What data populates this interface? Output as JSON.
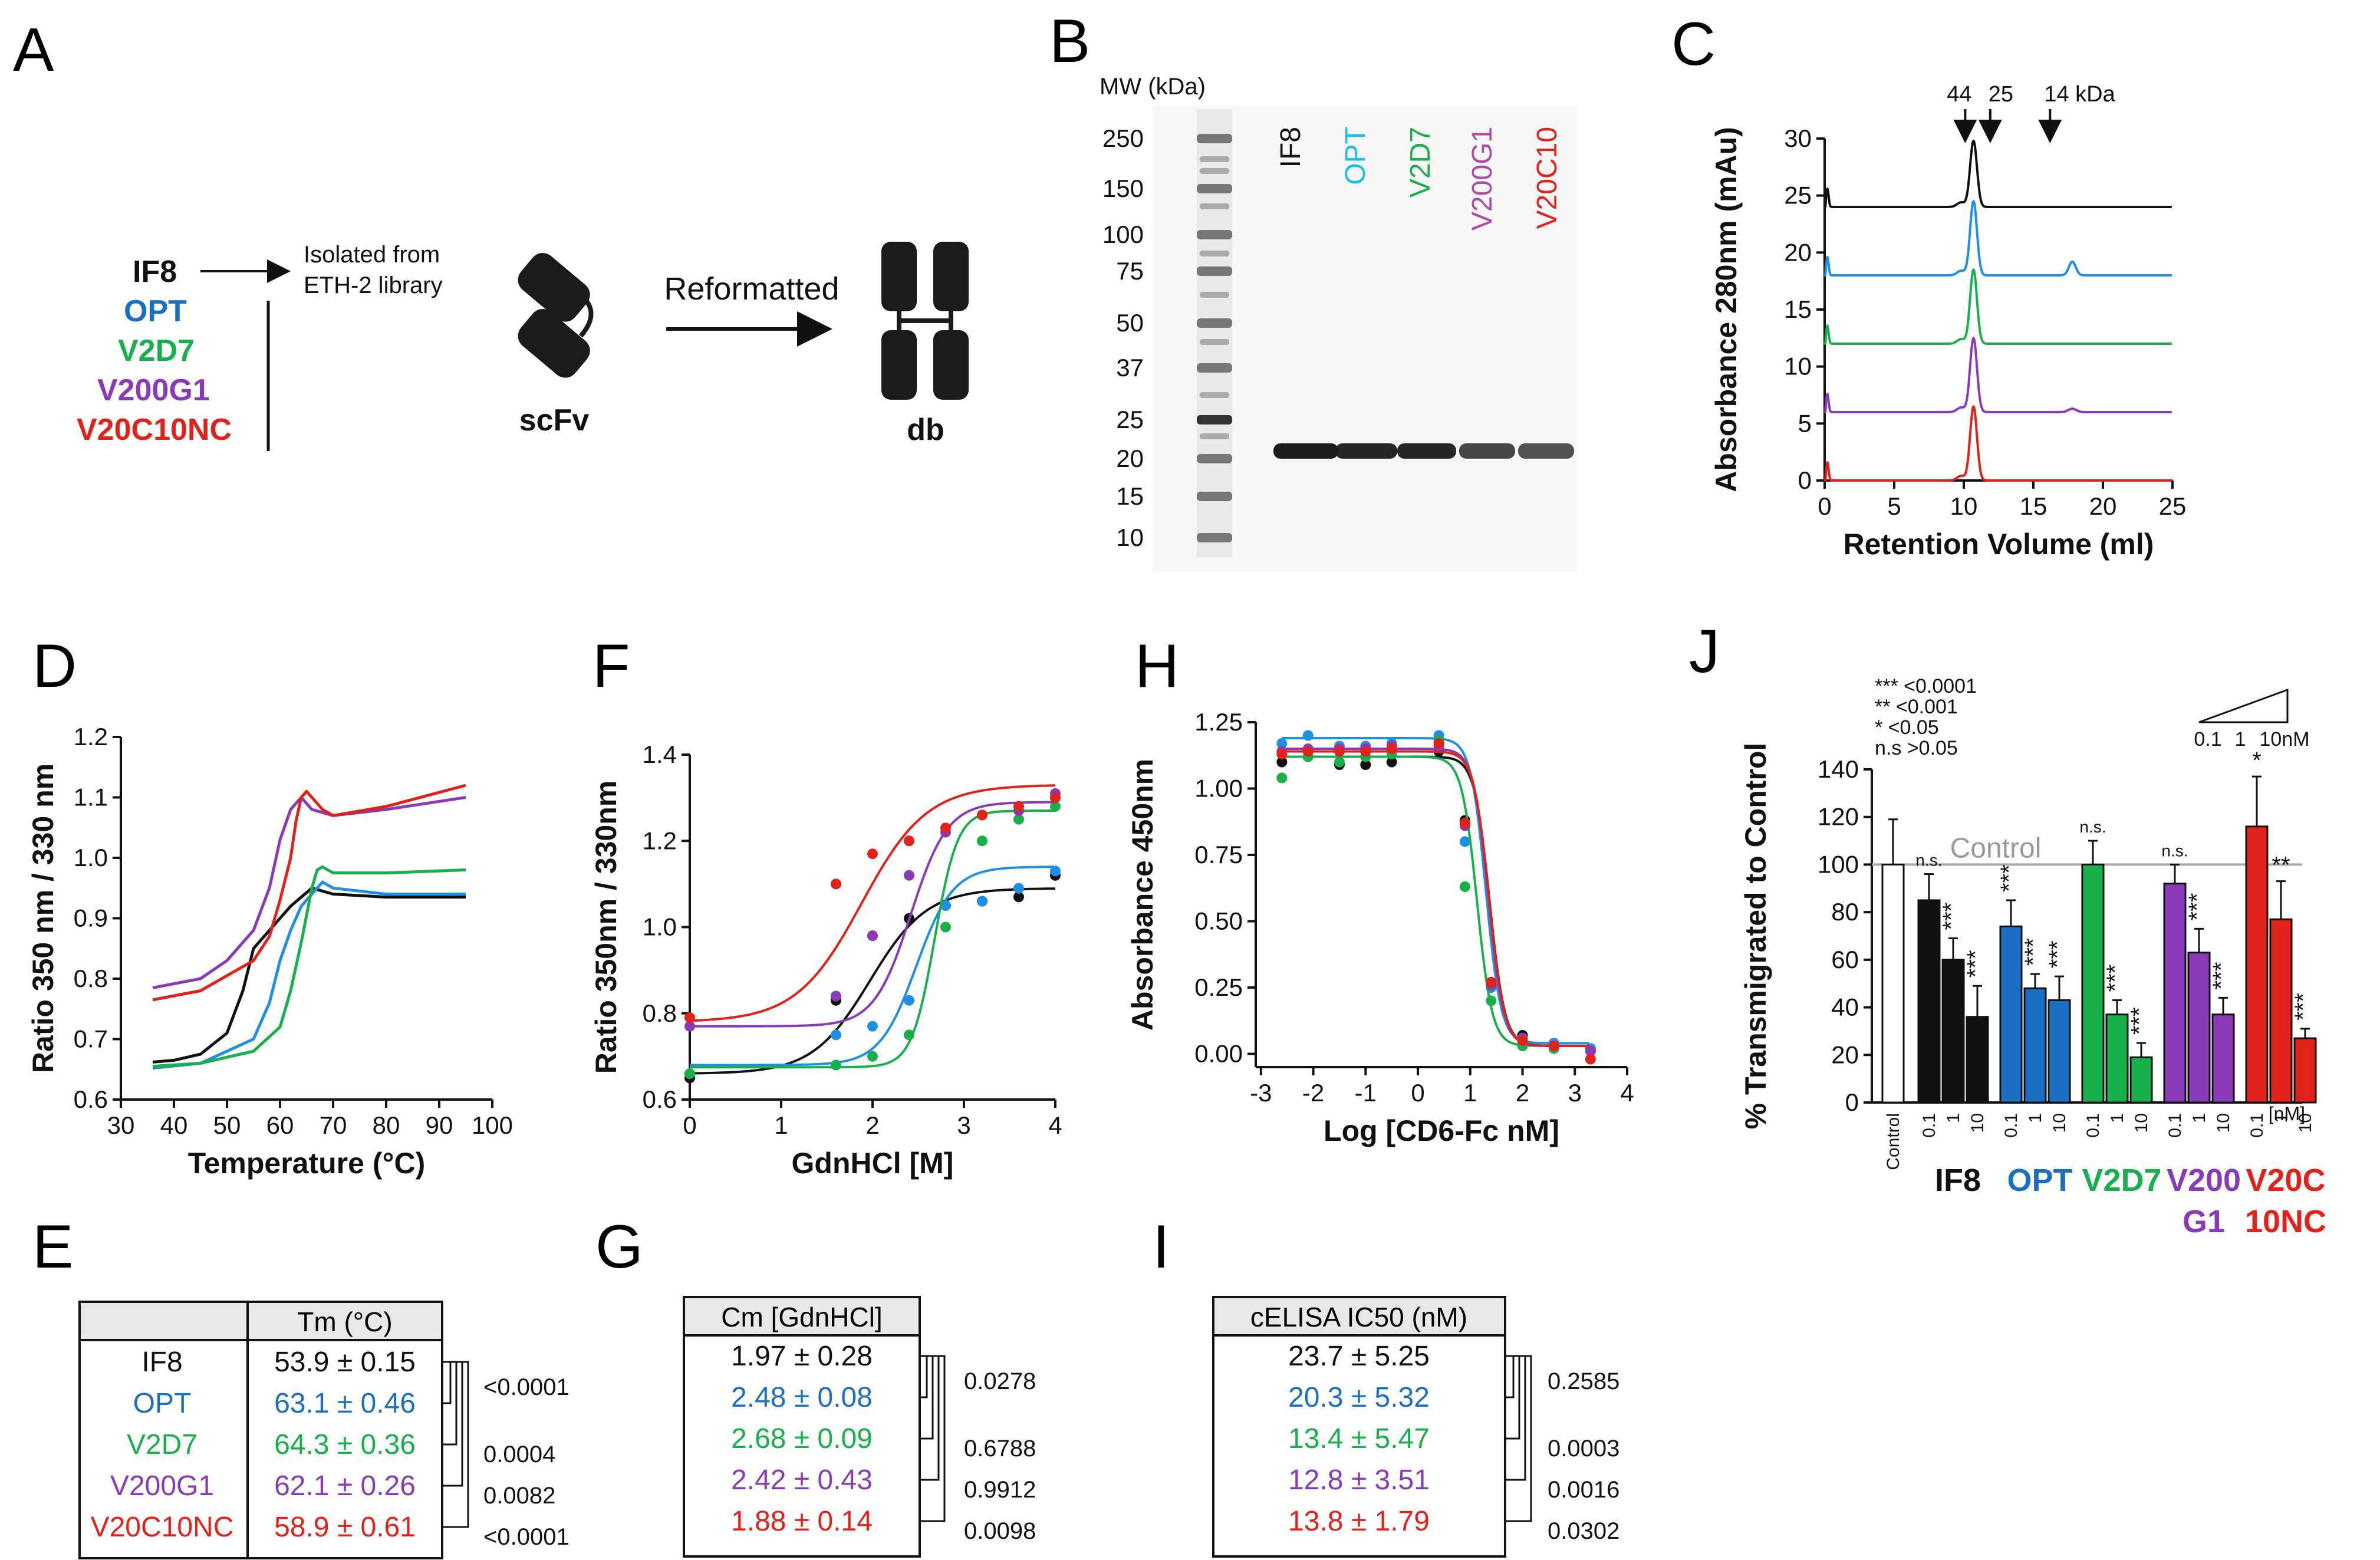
{
  "colors": {
    "IF8": "#111111",
    "OPT": "#1f8fe6",
    "OPT_dark": "#1a6fc2",
    "V2D7": "#18b04b",
    "V200G1": "#8a3ab8",
    "V20C10NC": "#e0221a",
    "gray": "#999999"
  },
  "panelA": {
    "letter": "A",
    "variants": [
      "IF8",
      "OPT",
      "V2D7",
      "V200G1",
      "V20C10NC"
    ],
    "isolated_line1": "Isolated from",
    "isolated_line2": "ETH-2 library",
    "scfv_label": "scFv",
    "reformatted_label": "Reformatted",
    "db_label": "db"
  },
  "panelB": {
    "letter": "B",
    "mw_title": "MW (kDa)",
    "mw_markers": [
      "250",
      "150",
      "100",
      "75",
      "50",
      "37",
      "25",
      "20",
      "15",
      "10"
    ],
    "lanes": [
      "IF8",
      "OPT",
      "V2D7",
      "V200G1",
      "V20C10"
    ]
  },
  "panelC": {
    "letter": "C",
    "markers": [
      "44",
      "25",
      "14 kDa"
    ],
    "xlabel": "Retention Volume (ml)",
    "ylabel": "Absorbance 280nm (mAu)",
    "xticks": [
      "0",
      "5",
      "10",
      "15",
      "20",
      "25"
    ],
    "yticks": [
      "0",
      "5",
      "10",
      "15",
      "20",
      "25",
      "30"
    ]
  },
  "panelD": {
    "letter": "D",
    "xlabel": "Temperature (°C)",
    "ylabel": "Ratio 350 nm / 330 nm",
    "xticks": [
      "30",
      "40",
      "50",
      "60",
      "70",
      "80",
      "90",
      "100"
    ],
    "yticks": [
      "0.6",
      "0.7",
      "0.8",
      "0.9",
      "1.0",
      "1.1",
      "1.2"
    ]
  },
  "panelE": {
    "letter": "E",
    "header": "Tm (°C)",
    "rows": [
      {
        "name": "IF8",
        "value": "53.9 ± 0.15"
      },
      {
        "name": "OPT",
        "value": "63.1 ± 0.46"
      },
      {
        "name": "V2D7",
        "value": "64.3 ± 0.36"
      },
      {
        "name": "V200G1",
        "value": "62.1 ± 0.26"
      },
      {
        "name": "V20C10NC",
        "value": "58.9 ± 0.61"
      }
    ],
    "pvalues": [
      "<0.0001",
      "0.0004",
      "0.0082",
      "<0.0001"
    ]
  },
  "panelF": {
    "letter": "F",
    "xlabel": "GdnHCl [M]",
    "ylabel": "Ratio 350nm / 330nm",
    "xticks": [
      "0",
      "1",
      "2",
      "3",
      "4"
    ],
    "yticks": [
      "0.6",
      "0.8",
      "1.0",
      "1.2",
      "1.4"
    ]
  },
  "panelG": {
    "letter": "G",
    "header": "Cm [GdnHCl]",
    "values": [
      "1.97 ± 0.28",
      "2.48 ± 0.08",
      "2.68 ± 0.09",
      "2.42 ± 0.43",
      "1.88 ± 0.14"
    ],
    "pvalues": [
      "0.0278",
      "0.6788",
      "0.9912",
      "0.0098"
    ]
  },
  "panelH": {
    "letter": "H",
    "xlabel": "Log [CD6-Fc nM]",
    "ylabel": "Absorbance 450nm",
    "xticks": [
      "-3",
      "-2",
      "-1",
      "0",
      "1",
      "2",
      "3",
      "4"
    ],
    "yticks": [
      "0.00",
      "0.25",
      "0.50",
      "0.75",
      "1.00",
      "1.25"
    ]
  },
  "panelI": {
    "letter": "I",
    "header": "cELISA IC50 (nM)",
    "values": [
      "23.7 ± 5.25",
      "20.3 ± 5.32",
      "13.4 ± 5.47",
      "12.8 ± 3.51",
      "13.8 ± 1.79"
    ],
    "pvalues": [
      "0.2585",
      "0.0003",
      "0.0016",
      "0.0302"
    ]
  },
  "panelJ": {
    "letter": "J",
    "ylabel": "% Transmigrated to Control",
    "control_label": "Control",
    "legend": [
      "*** <0.0001",
      "** <0.001",
      "* <0.05",
      "n.s >0.05"
    ],
    "conc_labels": [
      "0.1",
      "1",
      "10nM"
    ],
    "unit": "[nM]",
    "yticks": [
      "0",
      "20",
      "40",
      "60",
      "80",
      "100",
      "120",
      "140"
    ],
    "group_labels": [
      {
        "text": "IF8",
        "sub": ""
      },
      {
        "text": "OPT",
        "sub": ""
      },
      {
        "text": "V2D7",
        "sub": ""
      },
      {
        "text": "V200",
        "sub": "G1"
      },
      {
        "text": "V20C",
        "sub": "10NC"
      }
    ]
  },
  "chart_data": [
    {
      "type": "line",
      "title": "C",
      "xlabel": "Retention Volume (ml)",
      "ylabel": "Absorbance 280nm (mAu)",
      "xlim": [
        0,
        25
      ],
      "ylim": [
        0,
        30
      ],
      "series": [
        {
          "name": "IF8",
          "baseline": 24,
          "peak_x": 10.7,
          "peak": 29.8
        },
        {
          "name": "OPT",
          "baseline": 18,
          "peak_x": 10.7,
          "peak": 24.5
        },
        {
          "name": "V2D7",
          "baseline": 12,
          "peak_x": 10.7,
          "peak": 18.5
        },
        {
          "name": "V200G1",
          "baseline": 6,
          "peak_x": 10.7,
          "peak": 12.5
        },
        {
          "name": "V20C10NC",
          "baseline": 0,
          "peak_x": 10.7,
          "peak": 6.5
        }
      ]
    },
    {
      "type": "line",
      "title": "D",
      "xlabel": "Temperature (°C)",
      "ylabel": "Ratio 350 nm / 330 nm",
      "xlim": [
        30,
        100
      ],
      "ylim": [
        0.6,
        1.2
      ],
      "series": [
        {
          "name": "IF8",
          "x": [
            36,
            40,
            45,
            50,
            53,
            55,
            58,
            62,
            66,
            70,
            80,
            95
          ],
          "y": [
            0.662,
            0.665,
            0.675,
            0.71,
            0.78,
            0.85,
            0.88,
            0.92,
            0.95,
            0.94,
            0.935,
            0.935
          ]
        },
        {
          "name": "OPT",
          "x": [
            36,
            45,
            55,
            58,
            60,
            62,
            64,
            66,
            68,
            70,
            80,
            95
          ],
          "y": [
            0.652,
            0.66,
            0.7,
            0.76,
            0.83,
            0.88,
            0.92,
            0.94,
            0.96,
            0.95,
            0.94,
            0.94
          ]
        },
        {
          "name": "V2D7",
          "x": [
            36,
            45,
            55,
            60,
            62,
            64,
            66,
            67,
            68,
            70,
            80,
            95
          ],
          "y": [
            0.655,
            0.66,
            0.68,
            0.72,
            0.78,
            0.86,
            0.95,
            0.98,
            0.985,
            0.975,
            0.975,
            0.98
          ]
        },
        {
          "name": "V200G1",
          "x": [
            36,
            45,
            50,
            55,
            58,
            60,
            62,
            64,
            66,
            70,
            80,
            95
          ],
          "y": [
            0.785,
            0.8,
            0.83,
            0.88,
            0.95,
            1.03,
            1.08,
            1.1,
            1.08,
            1.07,
            1.08,
            1.1
          ]
        },
        {
          "name": "V20C10NC",
          "x": [
            36,
            45,
            55,
            58,
            60,
            62,
            63,
            64,
            65,
            66,
            68,
            70,
            80,
            95
          ],
          "y": [
            0.765,
            0.78,
            0.83,
            0.87,
            0.93,
            1.0,
            1.06,
            1.1,
            1.11,
            1.1,
            1.08,
            1.07,
            1.085,
            1.12
          ]
        }
      ]
    },
    {
      "type": "scatter",
      "title": "F",
      "xlabel": "GdnHCl [M]",
      "ylabel": "Ratio 350nm / 330nm",
      "xlim": [
        0,
        4
      ],
      "ylim": [
        0.6,
        1.4
      ],
      "series": [
        {
          "name": "IF8",
          "low": 0.66,
          "high": 1.09,
          "cm": 1.97,
          "slope": 1.6,
          "points_x": [
            0,
            1.6,
            2,
            2.4,
            2.8,
            3.2,
            3.6,
            4
          ],
          "points_y": [
            0.65,
            0.83,
            0.98,
            1.02,
            1.05,
            1.06,
            1.07,
            1.12
          ]
        },
        {
          "name": "OPT",
          "low": 0.68,
          "high": 1.14,
          "cm": 2.48,
          "slope": 2.5,
          "points_x": [
            0,
            1.6,
            2,
            2.4,
            2.8,
            3.2,
            3.6,
            4
          ],
          "points_y": [
            0.66,
            0.75,
            0.77,
            0.83,
            1.05,
            1.06,
            1.09,
            1.13
          ]
        },
        {
          "name": "V2D7",
          "low": 0.675,
          "high": 1.27,
          "cm": 2.68,
          "slope": 4,
          "points_x": [
            0,
            1.6,
            2,
            2.4,
            2.8,
            3.2,
            3.6,
            4
          ],
          "points_y": [
            0.66,
            0.68,
            0.7,
            0.75,
            1.0,
            1.2,
            1.25,
            1.28
          ]
        },
        {
          "name": "V200G1",
          "low": 0.77,
          "high": 1.29,
          "cm": 2.42,
          "slope": 2.5,
          "points_x": [
            0,
            1.6,
            2,
            2.4,
            2.8,
            3.2,
            3.6,
            4
          ],
          "points_y": [
            0.77,
            0.84,
            0.98,
            1.12,
            1.22,
            1.26,
            1.27,
            1.31
          ]
        },
        {
          "name": "V20C10NC",
          "low": 0.78,
          "high": 1.33,
          "cm": 1.88,
          "slope": 1.4,
          "points_x": [
            0,
            1.6,
            2,
            2.4,
            2.8,
            3.2,
            3.6,
            4
          ],
          "points_y": [
            0.79,
            1.1,
            1.17,
            1.2,
            1.23,
            1.26,
            1.28,
            1.3
          ]
        }
      ]
    },
    {
      "type": "scatter",
      "title": "H",
      "xlabel": "Log [CD6-Fc nM]",
      "ylabel": "Absorbance 450nm",
      "xlim": [
        -3,
        4
      ],
      "ylim": [
        0,
        1.25
      ],
      "series": [
        {
          "name": "IF8",
          "top": 1.12,
          "bottom": 0.03,
          "logIC50": 1.37,
          "points_x": [
            -2.6,
            -2.1,
            -1.5,
            -1,
            -0.5,
            0.4,
            0.9,
            1.4,
            2,
            2.6,
            3.3
          ],
          "points_y": [
            1.1,
            1.12,
            1.09,
            1.09,
            1.1,
            1.14,
            0.88,
            0.27,
            0.07,
            0.04,
            0.02
          ]
        },
        {
          "name": "OPT",
          "top": 1.19,
          "bottom": 0.04,
          "logIC50": 1.3,
          "points_x": [
            -2.6,
            -2.1,
            -1.5,
            -1,
            -0.5,
            0.4,
            0.9,
            1.4,
            2,
            2.6,
            3.3
          ],
          "points_y": [
            1.17,
            1.2,
            1.16,
            1.16,
            1.17,
            1.2,
            0.8,
            0.25,
            0.05,
            0.04,
            0.02
          ]
        },
        {
          "name": "V2D7",
          "top": 1.12,
          "bottom": 0.03,
          "logIC50": 1.13,
          "points_x": [
            -2.6,
            -2.1,
            -1.5,
            -1,
            -0.5,
            0.4,
            0.9,
            1.4,
            2,
            2.6,
            3.3
          ],
          "points_y": [
            1.04,
            1.12,
            1.1,
            1.12,
            1.13,
            1.18,
            0.63,
            0.2,
            0.03,
            0.02,
            0.01
          ]
        },
        {
          "name": "V200G1",
          "top": 1.15,
          "bottom": 0.03,
          "logIC50": 1.35,
          "points_x": [
            -2.6,
            -2.1,
            -1.5,
            -1,
            -0.5,
            0.4,
            0.9,
            1.4,
            2,
            2.6,
            3.3
          ],
          "points_y": [
            1.14,
            1.15,
            1.15,
            1.15,
            1.16,
            1.16,
            0.86,
            0.26,
            0.06,
            0.03,
            0.01
          ]
        },
        {
          "name": "V20C10NC",
          "top": 1.14,
          "bottom": 0.03,
          "logIC50": 1.36,
          "points_x": [
            -2.6,
            -2.1,
            -1.5,
            -1,
            -0.5,
            0.4,
            0.9,
            1.4,
            2,
            2.6,
            3.3
          ],
          "points_y": [
            1.13,
            1.14,
            1.14,
            1.14,
            1.15,
            1.17,
            0.87,
            0.27,
            0.05,
            0.03,
            -0.02
          ]
        }
      ]
    },
    {
      "type": "bar",
      "title": "J",
      "ylabel": "% Transmigrated to Control",
      "ylim": [
        0,
        140
      ],
      "categories": [
        "Control",
        "IF8 0.1",
        "IF8 1",
        "IF8 10",
        "OPT 0.1",
        "OPT 1",
        "OPT 10",
        "V2D7 0.1",
        "V2D7 1",
        "V2D7 10",
        "V200G1 0.1",
        "V200G1 1",
        "V200G1 10",
        "V20C10NC 0.1",
        "V20C10NC 1",
        "V20C10NC 10"
      ],
      "values": [
        100,
        85,
        60,
        36,
        74,
        48,
        43,
        100,
        37,
        19,
        92,
        63,
        37,
        116,
        77,
        27
      ],
      "errors": [
        19,
        11,
        9,
        13,
        11,
        6,
        10,
        10,
        6,
        6,
        8,
        10,
        7,
        21,
        16,
        4
      ],
      "significance": [
        "",
        "n.s.",
        "***",
        "***",
        "***",
        "***",
        "***",
        "n.s.",
        "***",
        "***",
        "n.s.",
        "***",
        "***",
        "*",
        "**",
        "***"
      ],
      "groups": [
        "Control",
        "IF8",
        "IF8",
        "IF8",
        "OPT",
        "OPT",
        "OPT",
        "V2D7",
        "V2D7",
        "V2D7",
        "V200G1",
        "V200G1",
        "V200G1",
        "V20C10NC",
        "V20C10NC",
        "V20C10NC"
      ],
      "xticks": [
        "Control",
        "0.1",
        "1",
        "10",
        "0.1",
        "1",
        "10",
        "0.1",
        "1",
        "10",
        "0.1",
        "1",
        "10",
        "0.1",
        "1",
        "10"
      ]
    }
  ]
}
